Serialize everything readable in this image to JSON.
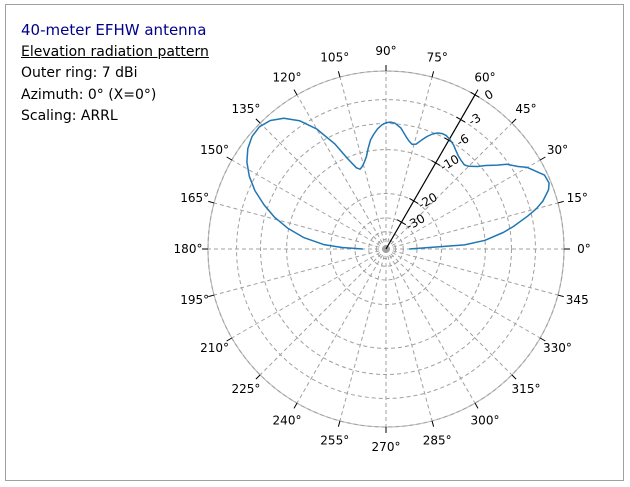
{
  "info": {
    "title": "40-meter EFHW antenna",
    "subtitle": "Elevation radiation pattern",
    "outer_ring": "Outer ring: 7 dBi",
    "azimuth": "Azimuth: 0° (X=0°)",
    "scaling": "Scaling: ARRL"
  },
  "colors": {
    "pattern": "#1f77b4",
    "grid": "#a0a0a0",
    "outer_circle": "#bfbfbf",
    "title": "#00008b"
  },
  "chart_data": {
    "type": "polar-line",
    "angle_unit": "degrees",
    "angle_zero": "right",
    "angle_direction": "counterclockwise",
    "angle_ticks": [
      0,
      15,
      30,
      45,
      60,
      75,
      90,
      105,
      120,
      135,
      150,
      165,
      180,
      195,
      210,
      225,
      240,
      255,
      270,
      285,
      300,
      315,
      330,
      345
    ],
    "angle_tick_labels": [
      "0°",
      "15°",
      "30°",
      "45°",
      "60°",
      "75°",
      "90°",
      "105°",
      "120°",
      "135°",
      "150°",
      "165°",
      "180°",
      "195°",
      "210°",
      "225°",
      "240°",
      "255°",
      "270°",
      "285°",
      "300°",
      "315°",
      "330°",
      "345"
    ],
    "radial_ticks_db": [
      0,
      -3,
      -6,
      -10,
      -20,
      -30
    ],
    "radial_tick_labels": [
      "0",
      "-3",
      "-6",
      "-10",
      "-20",
      "-30"
    ],
    "radial_label_angle": 60,
    "scaling": "ARRL",
    "grid": true,
    "series": [
      {
        "elevation_deg": [
          0,
          3,
          5,
          8,
          10,
          13,
          15,
          17,
          20,
          22,
          25,
          27,
          30,
          32,
          35,
          37,
          40,
          42,
          45,
          47,
          50,
          52,
          55,
          57,
          60,
          62,
          64,
          66,
          68,
          70,
          72,
          74,
          76,
          78,
          80,
          83,
          86,
          88,
          90,
          92,
          94,
          96,
          98,
          100,
          102,
          104,
          106,
          108,
          110,
          113,
          116,
          120,
          124,
          128,
          132,
          136,
          140,
          144,
          148,
          152,
          156,
          160,
          164,
          168,
          172,
          176,
          178,
          180
        ],
        "gain_db": [
          -35,
          -14,
          -10,
          -7,
          -5.5,
          -3.5,
          -2.3,
          -1.4,
          -0.5,
          -0.2,
          -0.3,
          -0.8,
          -1.5,
          -2.3,
          -3.2,
          -4.2,
          -5.4,
          -6.3,
          -7.2,
          -7.5,
          -7.3,
          -7.1,
          -6.6,
          -6.2,
          -5.8,
          -5.6,
          -5.6,
          -5.8,
          -6.2,
          -6.8,
          -7.6,
          -8.4,
          -8.6,
          -8.2,
          -7.6,
          -6.5,
          -5.9,
          -5.8,
          -5.9,
          -6.2,
          -6.7,
          -7.4,
          -8.2,
          -9.5,
          -10.9,
          -11.8,
          -12.5,
          -12.9,
          -12.4,
          -10.2,
          -7.2,
          -4.3,
          -2.4,
          -1.2,
          -0.5,
          -0.2,
          -0.3,
          -0.7,
          -1.4,
          -2.4,
          -3.7,
          -5.4,
          -7.3,
          -9.8,
          -13,
          -18,
          -24,
          -35
        ]
      }
    ]
  }
}
